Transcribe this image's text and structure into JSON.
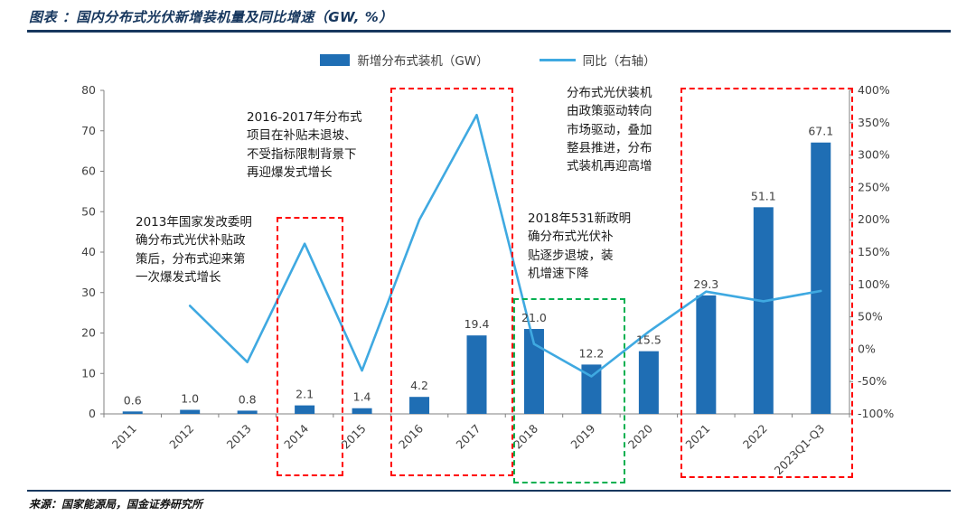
{
  "header": {
    "title": "图表 ：国内分布式光伏新增装机量及同比增速（GW, %）"
  },
  "footer": {
    "source": "来源：国家能源局，国金证券研究所"
  },
  "legend": {
    "items": [
      {
        "label": "新增分布式装机（GW）",
        "type": "bar"
      },
      {
        "label": "同比（右轴）",
        "type": "line"
      }
    ]
  },
  "chart_data": {
    "type": "bar",
    "title": "国内分布式光伏新增装机量及同比增速（GW, %）",
    "categories": [
      "2011",
      "2012",
      "2013",
      "2014",
      "2015",
      "2016",
      "2017",
      "2018",
      "2019",
      "2020",
      "2021",
      "2022",
      "2023Q1-Q3"
    ],
    "series": [
      {
        "name": "新增分布式装机（GW）",
        "type": "bar",
        "axis": "left",
        "color": "#1F6EB4",
        "values": [
          0.6,
          1.0,
          0.8,
          2.1,
          1.4,
          4.2,
          19.4,
          21.0,
          12.2,
          15.5,
          29.3,
          51.1,
          67.1
        ]
      },
      {
        "name": "同比（右轴）",
        "type": "line",
        "axis": "right",
        "color": "#3FA9E1",
        "values": [
          null,
          67,
          -20,
          163,
          -33,
          200,
          362,
          8,
          -42,
          27,
          89,
          74,
          90
        ]
      }
    ],
    "left_axis": {
      "min": 0,
      "max": 80,
      "step": 10,
      "ticks": [
        0,
        10,
        20,
        30,
        40,
        50,
        60,
        70,
        80
      ]
    },
    "right_axis": {
      "min": -100,
      "max": 400,
      "step": 50,
      "ticks": [
        "400%",
        "350%",
        "300%",
        "250%",
        "200%",
        "150%",
        "100%",
        "50%",
        "0%",
        "-50%",
        "-100%"
      ]
    },
    "grid": false,
    "legend_position": "top",
    "xlabel": "",
    "ylabel": ""
  },
  "annotations": [
    {
      "text": "2013年国家发改委明\n确分布式光伏补贴政\n策后，分布式迎来第\n一次爆发式增长",
      "box_color": "#FF0000",
      "highlight": "2014"
    },
    {
      "text": "2016-2017年分布式\n项目在补贴未退坡、\n不受指标限制背景下\n再迎爆发式增长",
      "box_color": "#FF0000",
      "highlight": "2016-2017"
    },
    {
      "text": "2018年531新政明\n确分布式光伏补\n贴逐步退坡，装\n机增速下降",
      "box_color": "#00B050",
      "highlight": "2018-2019"
    },
    {
      "text": "分布式光伏装机\n由政策驱动转向\n市场驱动，叠加\n整县推进，分布\n式装机再迎高增",
      "box_color": "#FF0000",
      "highlight": "2021-2023Q1-Q3"
    }
  ]
}
